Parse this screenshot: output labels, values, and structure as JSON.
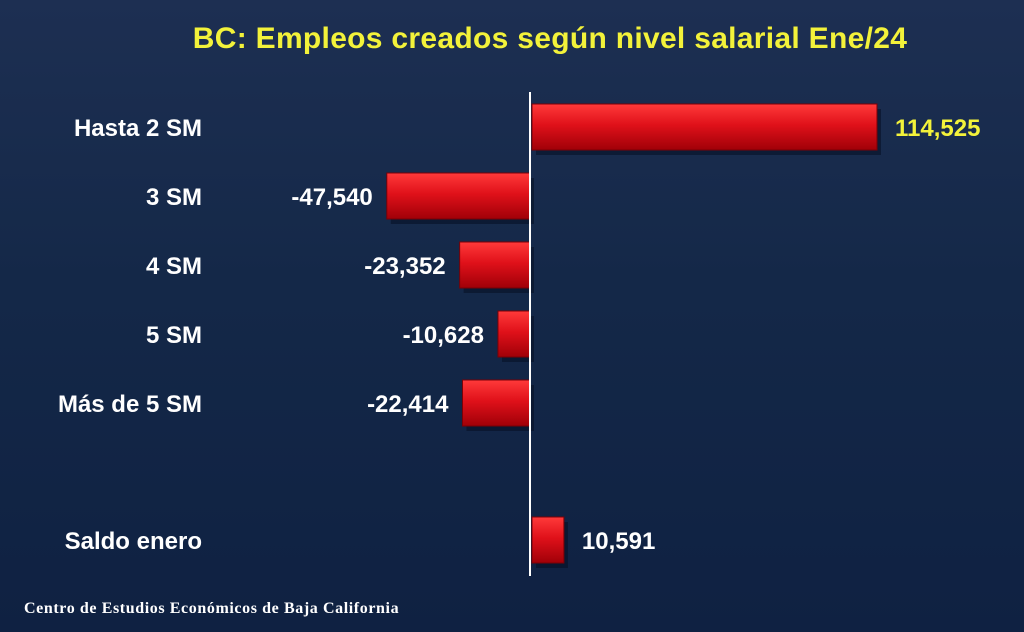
{
  "colors": {
    "bar": "#e0111a",
    "highlight_value": "#f3f23a",
    "value": "#ffffff",
    "axis": "#ffffff"
  },
  "chart_data": {
    "type": "bar",
    "orientation": "horizontal",
    "title": "BC: Empleos creados según nivel salarial Ene/24",
    "categories": [
      "Hasta 2 SM",
      "3 SM",
      "4 SM",
      "5 SM",
      "Más de 5 SM",
      "Saldo enero"
    ],
    "values": [
      114525,
      -47540,
      -23352,
      -10628,
      -22414,
      10591
    ],
    "value_labels": [
      "114,525",
      "-47,540",
      "-23,352",
      "-10,628",
      "-22,414",
      "10,591"
    ],
    "highlight": "Hasta 2 SM",
    "grid": false,
    "legend": "none"
  },
  "footer": {
    "source": "Centro de Estudios Económicos de Baja California"
  }
}
